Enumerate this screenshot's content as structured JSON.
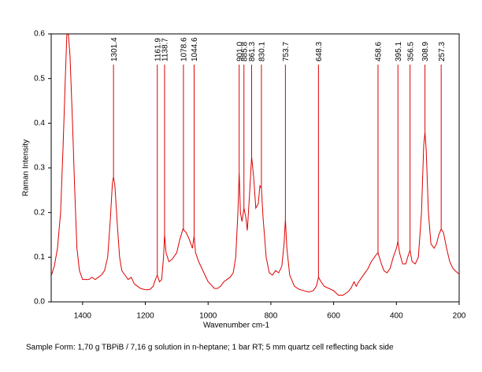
{
  "chart_data": {
    "type": "line",
    "x_label": "Wavenumber cm-1",
    "y_label": "Raman Intensity",
    "footnote": "Sample Form: 1,70 g TBPiB / 7,16 g solution in n-heptane; 1 bar RT; 5 mm quartz cell reflecting back side",
    "color": "#dd0000",
    "xlim": [
      1500,
      200
    ],
    "ylim": [
      0,
      0.6
    ],
    "xticks": [
      1400,
      1200,
      1000,
      800,
      600,
      400,
      200
    ],
    "yticks": [
      {
        "value": 0,
        "label": "0.0"
      },
      0.1,
      0.2,
      0.3,
      0.4,
      0.5,
      0.6
    ],
    "peaks": [
      1301.4,
      1161.9,
      1138.7,
      1078.6,
      1044.6,
      901.0,
      885.8,
      861.3,
      830.1,
      753.7,
      648.3,
      458.6,
      395.1,
      356.5,
      308.9,
      257.3
    ],
    "peak_labels": [
      "1301.4",
      "1161.9",
      "1138.7",
      "1078.6",
      "1044.6",
      "901.0",
      "885.8",
      "861.3",
      "830.1",
      "753.7",
      "648.3",
      "458.6",
      "395.1",
      "356.5",
      "308.9",
      "257.3"
    ],
    "x": [
      1500,
      1490,
      1480,
      1470,
      1462,
      1455,
      1450,
      1445,
      1440,
      1432,
      1425,
      1418,
      1410,
      1400,
      1390,
      1380,
      1370,
      1360,
      1350,
      1340,
      1330,
      1320,
      1312,
      1305,
      1301.4,
      1297,
      1290,
      1282,
      1275,
      1265,
      1255,
      1245,
      1235,
      1225,
      1215,
      1205,
      1195,
      1185,
      1175,
      1168,
      1161.9,
      1155,
      1148,
      1142,
      1138.7,
      1134,
      1125,
      1115,
      1100,
      1090,
      1080,
      1070,
      1060,
      1050,
      1044.6,
      1040,
      1030,
      1020,
      1010,
      1000,
      990,
      980,
      970,
      960,
      950,
      940,
      930,
      920,
      912,
      905,
      901,
      897,
      892,
      885.8,
      880,
      875,
      868,
      861.3,
      855,
      848,
      840,
      835,
      830.1,
      825,
      815,
      805,
      795,
      785,
      775,
      765,
      758,
      753.7,
      749,
      740,
      725,
      710,
      695,
      680,
      665,
      655,
      648.3,
      640,
      630,
      615,
      600,
      585,
      570,
      555,
      545,
      535,
      528,
      520,
      510,
      500,
      490,
      480,
      470,
      465,
      458.6,
      450,
      440,
      430,
      420,
      410,
      400,
      395.1,
      390,
      380,
      370,
      362,
      356.5,
      350,
      340,
      330,
      320,
      313,
      308.9,
      305,
      298,
      290,
      280,
      272,
      265,
      257.3,
      250,
      240,
      230,
      220,
      210,
      200
    ],
    "values": [
      0.058,
      0.08,
      0.12,
      0.2,
      0.35,
      0.5,
      0.6,
      0.598,
      0.55,
      0.4,
      0.25,
      0.12,
      0.07,
      0.05,
      0.05,
      0.05,
      0.055,
      0.05,
      0.055,
      0.06,
      0.07,
      0.1,
      0.18,
      0.265,
      0.28,
      0.26,
      0.18,
      0.1,
      0.07,
      0.06,
      0.05,
      0.055,
      0.04,
      0.035,
      0.03,
      0.028,
      0.027,
      0.028,
      0.035,
      0.05,
      0.06,
      0.045,
      0.05,
      0.1,
      0.15,
      0.11,
      0.09,
      0.095,
      0.11,
      0.14,
      0.163,
      0.155,
      0.14,
      0.12,
      0.148,
      0.11,
      0.09,
      0.075,
      0.06,
      0.045,
      0.038,
      0.03,
      0.03,
      0.035,
      0.045,
      0.05,
      0.055,
      0.065,
      0.1,
      0.2,
      0.29,
      0.2,
      0.18,
      0.21,
      0.19,
      0.16,
      0.24,
      0.325,
      0.28,
      0.21,
      0.22,
      0.26,
      0.255,
      0.19,
      0.1,
      0.065,
      0.06,
      0.07,
      0.065,
      0.08,
      0.13,
      0.185,
      0.12,
      0.06,
      0.035,
      0.028,
      0.025,
      0.022,
      0.025,
      0.035,
      0.055,
      0.045,
      0.035,
      0.03,
      0.025,
      0.015,
      0.015,
      0.022,
      0.03,
      0.045,
      0.035,
      0.045,
      0.055,
      0.065,
      0.075,
      0.09,
      0.1,
      0.105,
      0.11,
      0.09,
      0.07,
      0.065,
      0.075,
      0.1,
      0.12,
      0.135,
      0.11,
      0.085,
      0.085,
      0.105,
      0.115,
      0.09,
      0.085,
      0.1,
      0.2,
      0.35,
      0.38,
      0.34,
      0.2,
      0.13,
      0.12,
      0.13,
      0.15,
      0.163,
      0.155,
      0.12,
      0.09,
      0.075,
      0.068,
      0.062
    ]
  }
}
